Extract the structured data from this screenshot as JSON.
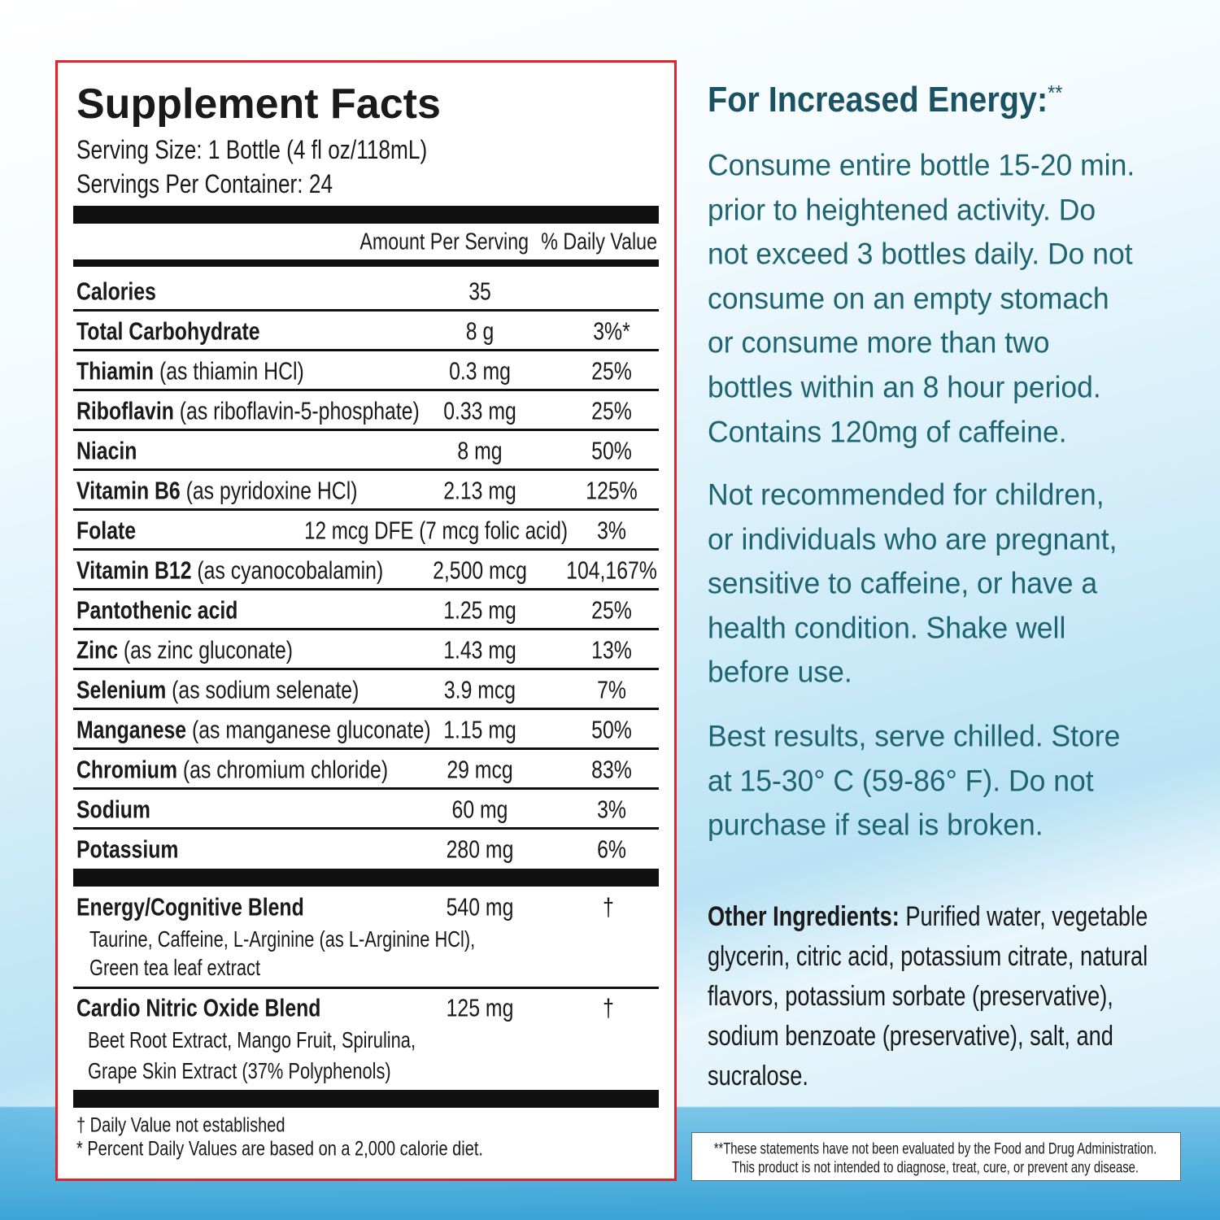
{
  "label": {
    "title": "Supplement Facts",
    "serving_size": "Serving Size: 1 Bottle (4 fl oz/118mL)",
    "servings_per_container": "Servings Per Container: 24",
    "column_amount": "Amount Per Serving",
    "column_dv": "% Daily Value",
    "rows": [
      {
        "name": "Calories",
        "amount": "35"
      },
      {
        "name": "Total Carbohydrate",
        "amount": "8 g",
        "dv": "3%*"
      },
      {
        "name": "Thiamin",
        "note": "(as thiamin HCl)",
        "amount": "0.3 mg",
        "dv": "25%"
      },
      {
        "name": "Riboflavin",
        "note": "(as riboflavin-5-phosphate)",
        "amount": "0.33 mg",
        "dv": "25%"
      },
      {
        "name": "Niacin",
        "amount": "8 mg",
        "dv": "50%"
      },
      {
        "name": "Vitamin B6",
        "note": "(as pyridoxine HCl)",
        "amount": "2.13 mg",
        "dv": "125%"
      },
      {
        "name": "Folate",
        "amount": "12 mcg DFE (7 mcg folic acid)",
        "dv": "3%"
      },
      {
        "name": "Vitamin B12",
        "note": "(as cyanocobalamin)",
        "amount": "2,500 mcg",
        "dv": "104,167%"
      },
      {
        "name": "Pantothenic acid",
        "amount": "1.25 mg",
        "dv": "25%"
      },
      {
        "name": "Zinc",
        "note": "(as zinc gluconate)",
        "amount": "1.43 mg",
        "dv": "13%"
      },
      {
        "name": "Selenium",
        "note": "(as sodium selenate)",
        "amount": "3.9 mcg",
        "dv": "7%"
      },
      {
        "name": "Manganese",
        "note": "(as manganese gluconate)",
        "amount": "1.15 mg",
        "dv": "50%"
      },
      {
        "name": "Chromium",
        "note": "(as chromium chloride)",
        "amount": "29 mcg",
        "dv": "83%"
      },
      {
        "name": "Sodium",
        "amount": "60 mg",
        "dv": "3%"
      },
      {
        "name": "Potassium",
        "amount": "280 mg",
        "dv": "6%"
      }
    ],
    "blends": [
      {
        "name": "Energy/Cognitive Blend",
        "amount": "540 mg",
        "dv": "†",
        "ingredients": [
          "Taurine, Caffeine, L-Arginine (as L-Arginine HCl),",
          "Green tea leaf extract"
        ]
      },
      {
        "name": "Cardio Nitric Oxide Blend",
        "amount": "125 mg",
        "dv": "†",
        "ingredients": [
          "Beet Root Extract, Mango Fruit, Spirulina,",
          "Grape Skin Extract (37% Polyphenols)"
        ]
      }
    ],
    "footnotes": [
      "† Daily Value not established",
      "* Percent Daily Values are based on a 2,000 calorie diet."
    ]
  },
  "directions": {
    "heading": "For Increased Energy:",
    "heading_mark": "**",
    "paragraphs": [
      [
        "Consume entire bottle 15-20 min.",
        "prior to heightened activity. Do",
        "not exceed 3 bottles daily. Do not",
        "consume on an empty stomach",
        "or consume more than two",
        "bottles within an 8 hour period.",
        "Contains 120mg of caffeine."
      ],
      [
        "Not recommended for children,",
        "or individuals who are pregnant,",
        "sensitive to caffeine, or have a",
        "health condition. Shake well",
        "before use."
      ],
      [
        "Best results, serve chilled. Store",
        "at 15-30° C (59-86° F). Do not",
        "purchase if seal is broken."
      ]
    ]
  },
  "other_ingredients": {
    "label": "Other Ingredients:",
    "lines": [
      "Purified water, vegetable",
      "glycerin, citric acid, potassium citrate, natural",
      "flavors, potassium sorbate (preservative),",
      "sodium benzoate (preservative), salt, and",
      "sucralose."
    ]
  },
  "disclaimer": [
    "**These statements have not been evaluated by the Food and Drug Administration.",
    "This product is not intended to diagnose, treat, cure, or prevent any disease."
  ]
}
